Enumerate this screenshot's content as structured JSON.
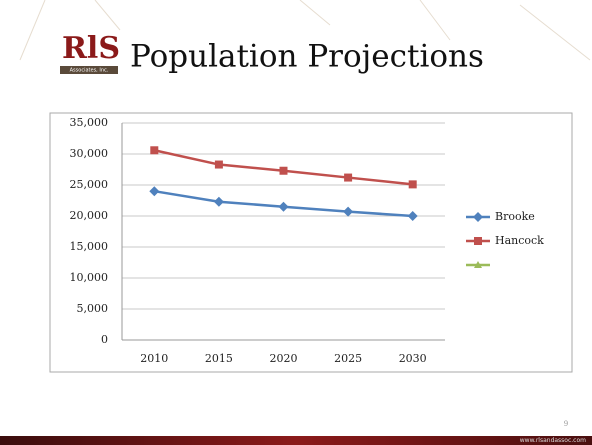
{
  "logo": {
    "mark": "RlS",
    "subtitle": "Associates, Inc."
  },
  "chart_data": {
    "type": "line",
    "title": "Population Projections",
    "categories": [
      "2010",
      "2015",
      "2020",
      "2025",
      "2030"
    ],
    "series": [
      {
        "name": "Brooke",
        "color": "#4f81bd",
        "marker": "diamond",
        "values": [
          24000,
          22300,
          21500,
          20700,
          20000
        ]
      },
      {
        "name": "Hancock",
        "color": "#c0504d",
        "marker": "square",
        "values": [
          30600,
          28300,
          27300,
          26200,
          25100
        ]
      },
      {
        "color": "#9bbb59",
        "marker": "triangle",
        "values": [
          null,
          null,
          null,
          null,
          null
        ]
      }
    ],
    "ylim": [
      0,
      35000
    ],
    "yticks": [
      0,
      {
        "value": 5000,
        "label": "5,000"
      },
      {
        "value": 10000,
        "label": "10,000"
      },
      {
        "value": 15000,
        "label": "15,000"
      },
      {
        "value": 20000,
        "label": "20,000"
      },
      {
        "value": 25000,
        "label": "25,000"
      },
      {
        "value": 30000,
        "label": "30,000"
      },
      {
        "value": 35000,
        "label": "35,000"
      }
    ],
    "grid": true,
    "legend": "right"
  },
  "footer": {
    "page": "9",
    "url": "www.rlsandassoc.com"
  }
}
